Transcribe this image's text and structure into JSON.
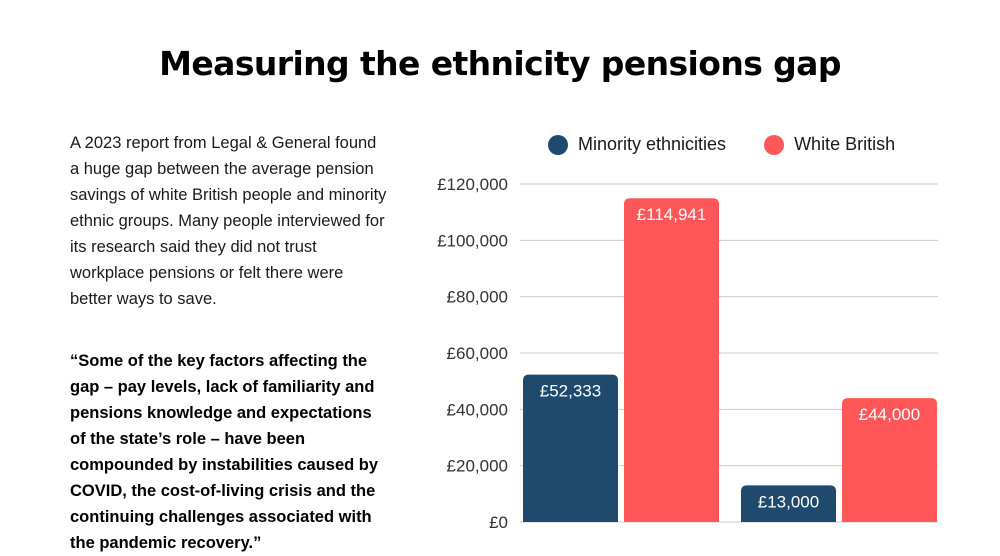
{
  "title": "Measuring the ethnicity pensions gap",
  "intro_text": "A 2023 report from Legal & General found a huge gap between the average pension savings of white British people and minority ethnic groups. Many people interviewed for its research said they did not trust workplace pensions or felt there were better ways to save.",
  "quote_text": "“Some of the key factors affecting the gap – pay levels, lack of familiarity and pensions knowledge and expectations of the state’s role – have been compounded by instabilities caused by COVID, the cost-of-living crisis and the continuing challenges associated with the pandemic recovery.”",
  "colors": {
    "minority": "#1f4a6e",
    "white_british": "#ff5757",
    "grid": "#cccccc",
    "axis_text": "#333333"
  },
  "chart_data": {
    "type": "bar",
    "title": "",
    "xlabel": "",
    "ylabel": "",
    "ylim": [
      0,
      120000
    ],
    "yticks": [
      0,
      20000,
      40000,
      60000,
      80000,
      100000,
      120000
    ],
    "ytick_labels": [
      "£0",
      "£20,000",
      "£40,000",
      "£60,000",
      "£80,000",
      "£100,000",
      "£120,000"
    ],
    "grid": true,
    "legend_position": "top",
    "categories": [
      "",
      ""
    ],
    "series": [
      {
        "name": "Minority ethnicities",
        "color": "#1f4a6e",
        "values": [
          52333,
          13000
        ],
        "labels": [
          "£52,333",
          "£13,000"
        ]
      },
      {
        "name": "White British",
        "color": "#ff5757",
        "values": [
          114941,
          44000
        ],
        "labels": [
          "£114,941",
          "£44,000"
        ]
      }
    ]
  }
}
